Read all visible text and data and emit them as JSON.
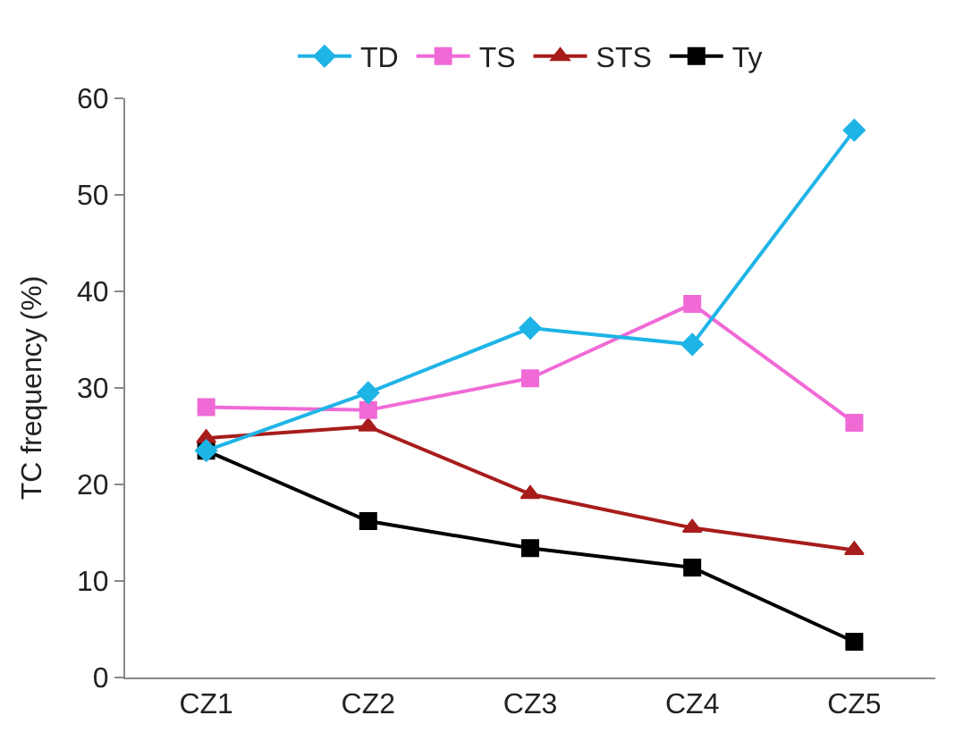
{
  "chart_data": {
    "type": "line",
    "ylabel": "TC frequency (%)",
    "categories": [
      "CZ1",
      "CZ2",
      "CZ3",
      "CZ4",
      "CZ5"
    ],
    "series": [
      {
        "name": "TD",
        "color": "#1fb4e6",
        "marker": "diamond",
        "values": [
          23.5,
          29.5,
          36.2,
          34.5,
          56.7
        ]
      },
      {
        "name": "TS",
        "color": "#f06ad6",
        "marker": "square",
        "values": [
          28,
          27.7,
          31,
          38.7,
          26.4
        ]
      },
      {
        "name": "STS",
        "color": "#a81c1c",
        "marker": "triangle",
        "values": [
          24.8,
          26,
          19,
          15.5,
          13.2
        ]
      },
      {
        "name": "Ty",
        "color": "#000000",
        "marker": "cross",
        "values": [
          23.5,
          16.2,
          13.4,
          11.4,
          3.7
        ]
      }
    ],
    "ylim": [
      0,
      60
    ],
    "yticks": [
      0,
      10,
      20,
      30,
      40,
      50,
      60
    ],
    "grid": false,
    "legend": "top",
    "line_style": "solid"
  }
}
